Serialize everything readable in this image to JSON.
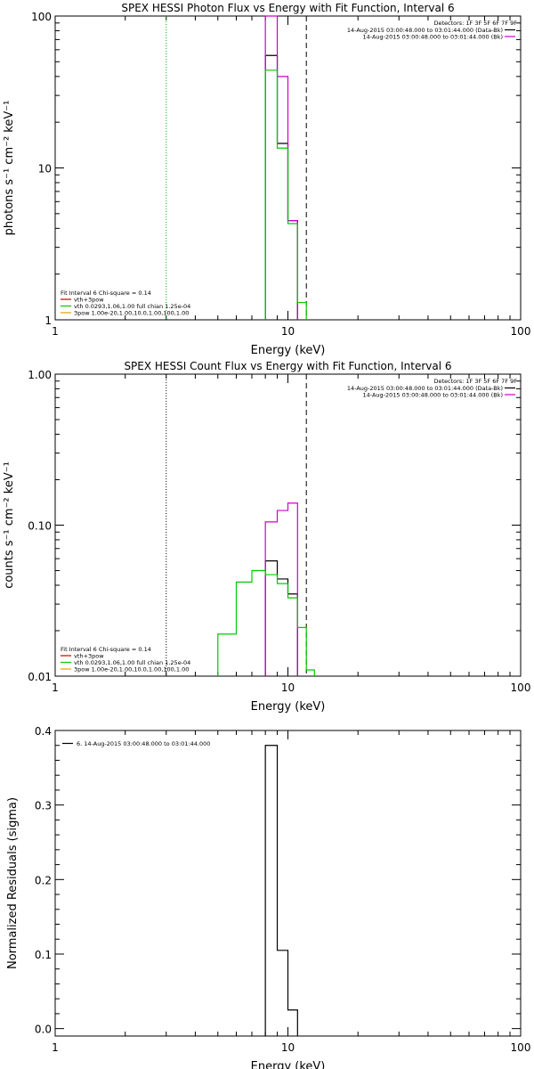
{
  "chart_data": [
    {
      "type": "line",
      "title": "SPEX HESSI Photon Flux vs Energy with Fit Function, Interval 6",
      "xlabel": "Energy (keV)",
      "ylabel": "photons s⁻¹ cm⁻² keV⁻¹",
      "xscale": "log",
      "yscale": "log",
      "xlim": [
        1,
        100
      ],
      "ylim": [
        1,
        100
      ],
      "x_tick_labels": [
        "1",
        "10",
        "100"
      ],
      "y_tick_labels": [
        "1",
        "10",
        "100"
      ],
      "vlines": [
        {
          "x": 3.0,
          "style": "dotted",
          "color": "#00b000"
        },
        {
          "x": 12.0,
          "style": "dashed",
          "color": "#000000"
        }
      ],
      "header": {
        "detectors": "Detectors: 1F 3F 5F 6F 7F 9F",
        "lines": [
          {
            "text": "14-Aug-2015 03:00:48.000 to 03:01:44.000 (Data-Bk)",
            "color": "#000000"
          },
          {
            "text": "14-Aug-2015 03:00:48.000 to 03:01:44.000 (Bk)",
            "color": "#cc00cc"
          }
        ]
      },
      "legend": {
        "position": "bottom-left",
        "title": "Fit Interval 6   Chi-square = 0.14",
        "entries": [
          {
            "label": "vth+3pow",
            "color": "#cc0000"
          },
          {
            "label": "vth 0.0293,1.06,1.00  full chian 1.25e-04",
            "color": "#00cc00"
          },
          {
            "label": "3pow 1.00e-20,1.00,10.0,1.00,100,1.00",
            "color": "#e0a000"
          }
        ]
      },
      "series": [
        {
          "name": "Data-Bk",
          "color": "#000000",
          "edges": [
            8,
            9,
            10,
            11
          ],
          "values": [
            55,
            14.5,
            4.5
          ]
        },
        {
          "name": "Bk",
          "color": "#cc00cc",
          "edges": [
            8,
            9,
            10,
            11
          ],
          "values": [
            100,
            40,
            4.5
          ]
        },
        {
          "name": "vth",
          "color": "#00cc00",
          "edges": [
            8,
            9,
            10,
            11,
            12
          ],
          "values": [
            44,
            13.5,
            4.3,
            1.3
          ]
        }
      ]
    },
    {
      "type": "line",
      "title": "SPEX HESSI Count Flux vs Energy with Fit Function, Interval 6",
      "xlabel": "Energy (keV)",
      "ylabel": "counts s⁻¹ cm⁻² keV⁻¹",
      "xscale": "log",
      "yscale": "log",
      "xlim": [
        1,
        100
      ],
      "ylim": [
        0.01,
        1
      ],
      "x_tick_labels": [
        "1",
        "10",
        "100"
      ],
      "y_tick_labels": [
        "0.01",
        "0.10",
        "1.00"
      ],
      "vlines": [
        {
          "x": 3.0,
          "style": "dotted",
          "color": "#000000"
        },
        {
          "x": 12.0,
          "style": "dashed",
          "color": "#000000"
        }
      ],
      "header": {
        "detectors": "Detectors: 1F 3F 5F 6F 7F 9F",
        "lines": [
          {
            "text": "14-Aug-2015 03:00:48.000 to 03:01:44.000 (Data-Bk)",
            "color": "#000000"
          },
          {
            "text": "14-Aug-2015 03:00:48.000 to 03:01:44.000 (Bk)",
            "color": "#cc00cc"
          }
        ]
      },
      "legend": {
        "position": "bottom-left",
        "title": "Fit Interval 6   Chi-square = 0.14",
        "entries": [
          {
            "label": "vth+3pow",
            "color": "#cc0000"
          },
          {
            "label": "vth 0.0293,1.06,1.00  full chian 1.25e-04",
            "color": "#00cc00"
          },
          {
            "label": "3pow 1.00e-20,1.00,10.0,1.00,100,1.00",
            "color": "#e0a000"
          }
        ]
      },
      "series": [
        {
          "name": "Data-Bk",
          "color": "#000000",
          "edges": [
            8,
            9,
            10,
            11
          ],
          "values": [
            0.058,
            0.044,
            0.035
          ]
        },
        {
          "name": "Bk",
          "color": "#cc00cc",
          "edges": [
            8,
            9,
            10,
            11
          ],
          "values": [
            0.105,
            0.125,
            0.14
          ]
        },
        {
          "name": "vth",
          "color": "#00cc00",
          "edges": [
            5,
            6,
            7,
            8,
            9,
            10,
            11,
            12,
            13
          ],
          "values": [
            0.019,
            0.042,
            0.05,
            0.047,
            0.041,
            0.033,
            0.021,
            0.011
          ]
        }
      ]
    },
    {
      "type": "line",
      "title": "",
      "xlabel": "Energy (keV)",
      "ylabel": "Normalized Residuals (sigma)",
      "xscale": "log",
      "yscale": "linear",
      "xlim": [
        1,
        100
      ],
      "ylim": [
        -0.01,
        0.4
      ],
      "x_tick_labels": [
        "1",
        "10",
        "100"
      ],
      "y_ticks": [
        0.0,
        0.1,
        0.2,
        0.3,
        0.4
      ],
      "y_tick_labels": [
        "0.0",
        "0.1",
        "0.2",
        "0.3",
        "0.4"
      ],
      "legend": {
        "position": "top-left",
        "entries": [
          {
            "label": "6. 14-Aug-2015 03:00:48.000 to 03:01:44.000",
            "color": "#000000"
          }
        ]
      },
      "series": [
        {
          "name": "6. 14-Aug-2015 03:00:48.000 to 03:01:44.000",
          "color": "#000000",
          "edges": [
            8,
            9,
            10,
            11
          ],
          "values": [
            0.38,
            0.105,
            0.025
          ]
        }
      ]
    }
  ]
}
